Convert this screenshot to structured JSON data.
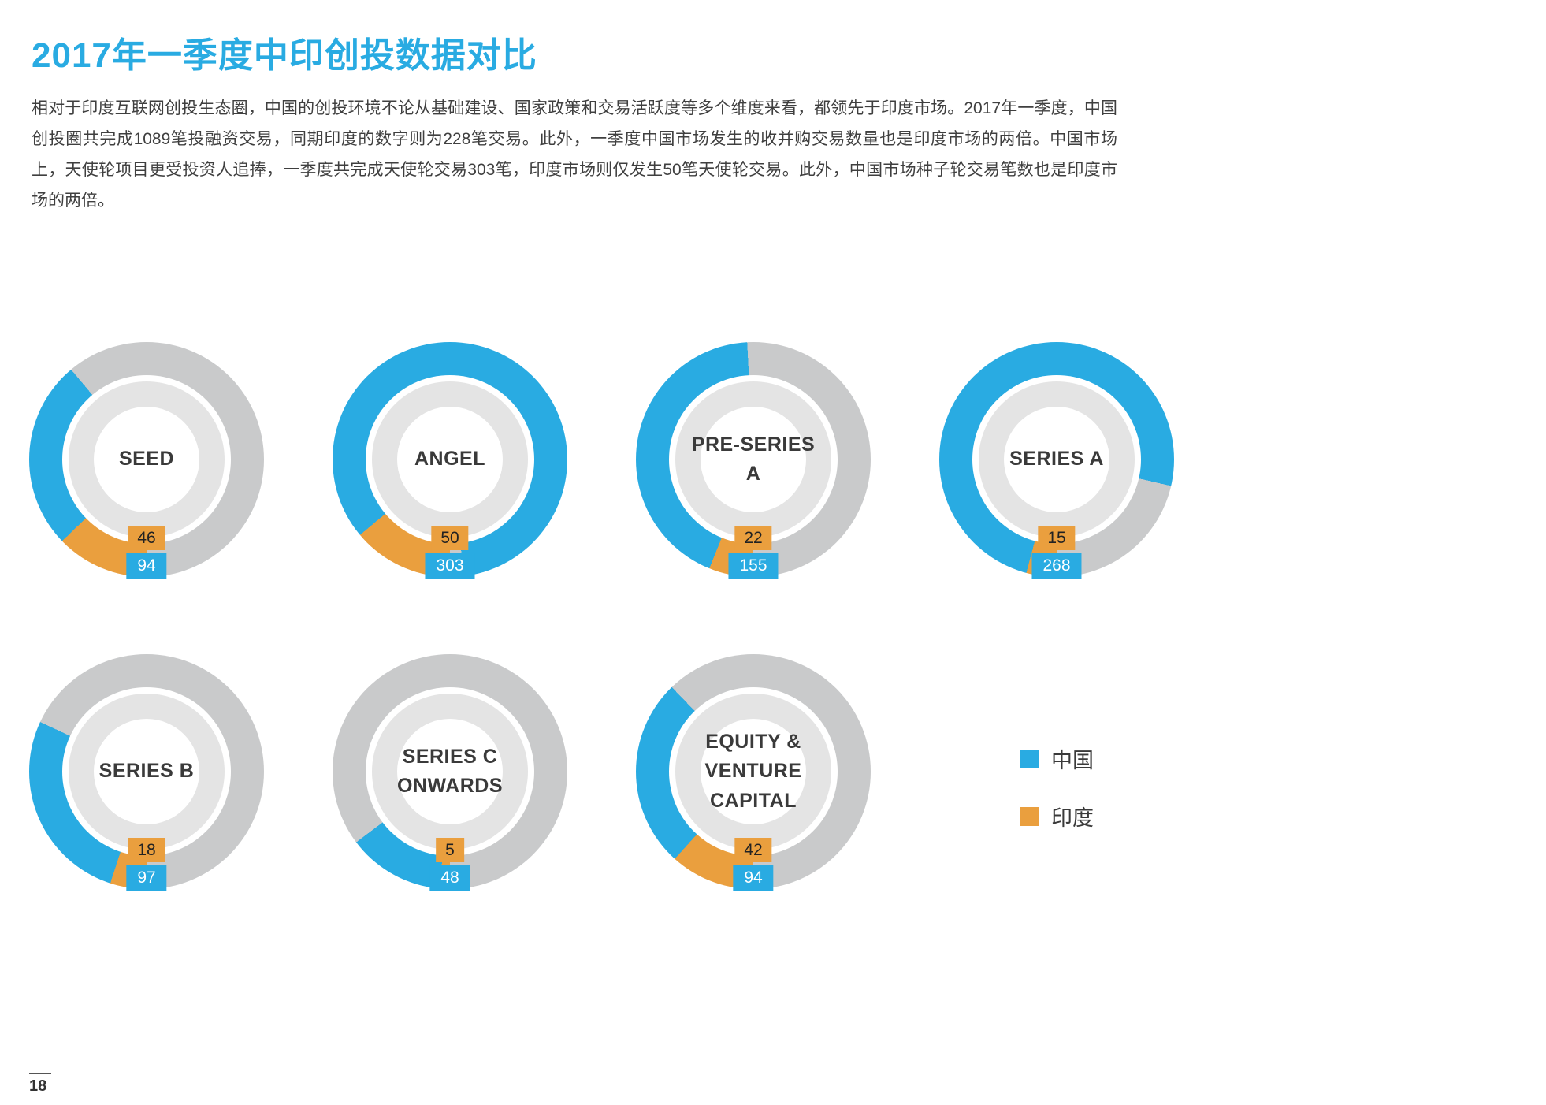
{
  "page": {
    "title": "2017年一季度中印创投数据对比",
    "paragraph": "相对于印度互联网创投生态圈，中国的创投环境不论从基础建设、国家政策和交易活跃度等多个维度来看，都领先于印度市场。2017年一季度，中国创投圈共完成1089笔投融资交易，同期印度的数字则为228笔交易。此外，一季度中国市场发生的收并购交易数量也是印度市场的两倍。中国市场上，天使轮项目更受投资人追捧，一季度共完成天使轮交易303笔，印度市场则仅发生50笔天使轮交易。此外，中国市场种子轮交易笔数也是印度市场的两倍。",
    "page_number": "18"
  },
  "legend": {
    "china_label": "中国",
    "india_label": "印度"
  },
  "colors": {
    "china_blue": "#29ABE2",
    "india_orange": "#EA9F3E",
    "ring_gray": "#C9CACB",
    "inner_ring_gray": "#E4E4E4",
    "title_blue": "#29ABE2"
  },
  "chart_data": {
    "type": "pie",
    "subtype": "donut-comparison",
    "title": "2017年一季度中印创投数据对比",
    "description": "Seven donut rings comparing Q1 2017 venture deal counts, China (blue) vs India (orange), by funding stage. Arc length equals the deal count in degrees starting at the bottom of the ring (India arc first, then China arc, clockwise); the remainder of the ring is gray.",
    "series_names": [
      "中国 (China)",
      "印度 (India)"
    ],
    "legend_position": "right of bottom row",
    "charts": [
      {
        "id": "seed",
        "label": "SEED",
        "china": 94,
        "india": 46
      },
      {
        "id": "angel",
        "label": "ANGEL",
        "china": 303,
        "india": 50
      },
      {
        "id": "pre-series-a",
        "label": "PRE-SERIES A",
        "china": 155,
        "india": 22
      },
      {
        "id": "series-a",
        "label": "SERIES A",
        "china": 268,
        "india": 15
      },
      {
        "id": "series-b",
        "label": "SERIES B",
        "china": 97,
        "india": 18
      },
      {
        "id": "series-c-onwards",
        "label": "SERIES C ONWARDS",
        "china": 48,
        "india": 5
      },
      {
        "id": "equity-venture-capital",
        "label": "EQUITY & VENTURE CAPITAL",
        "china": 94,
        "india": 42
      }
    ]
  }
}
